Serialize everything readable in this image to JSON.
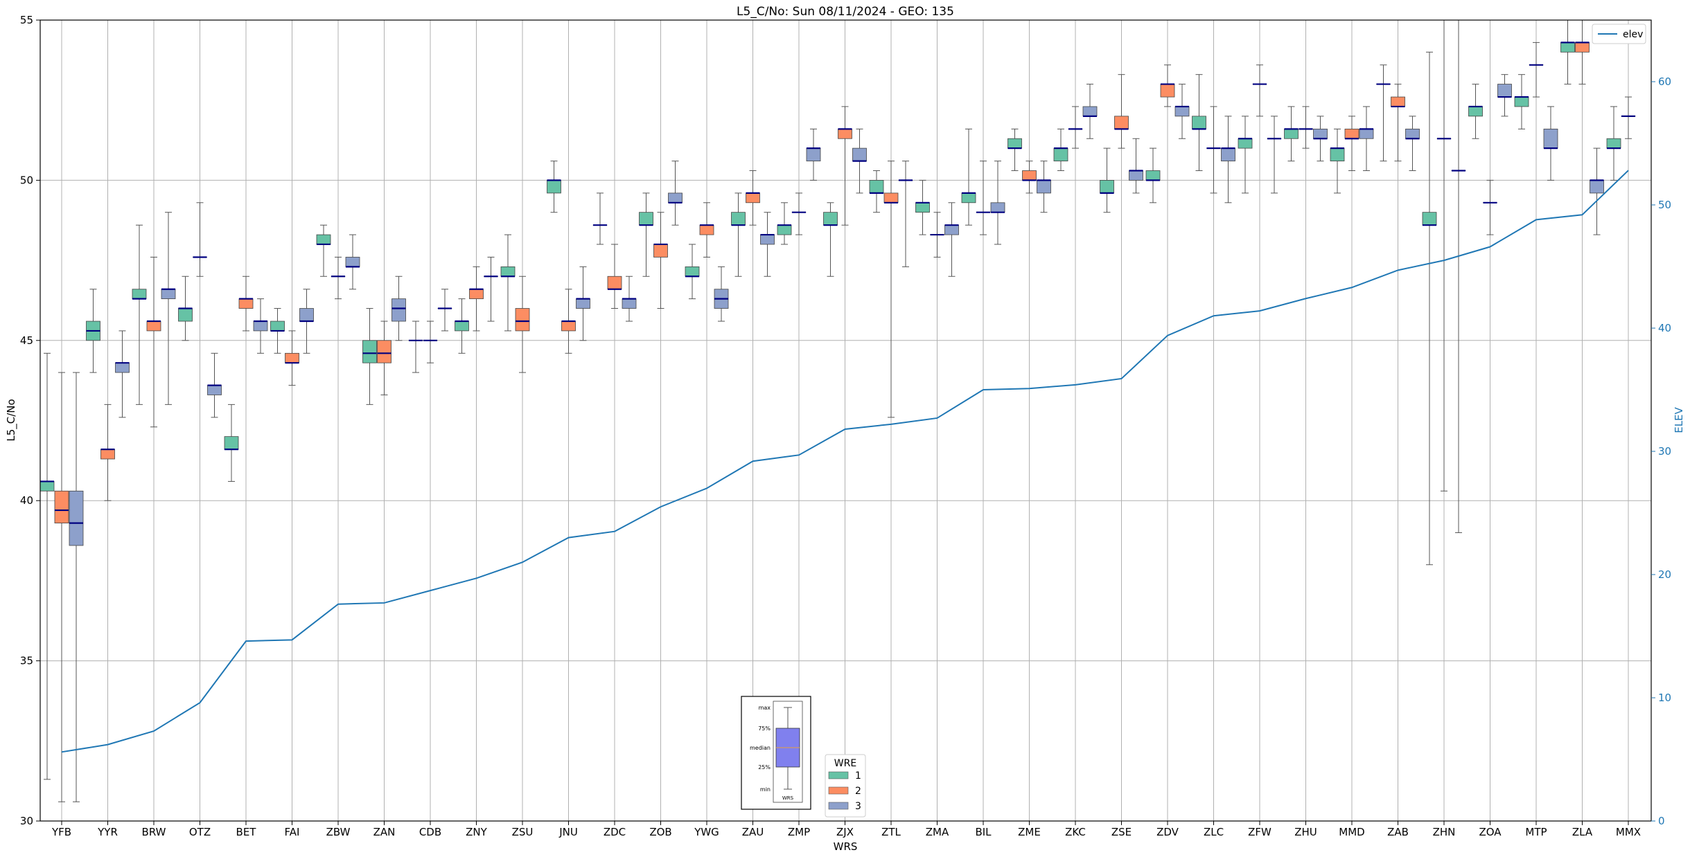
{
  "chart_data": {
    "type": "box",
    "title": "L5_C/No: Sun 08/11/2024 - GEO: 135",
    "xlabel": "WRS",
    "ylabel": "L5_C/No",
    "y2label": "ELEV",
    "ylim": [
      30,
      55
    ],
    "y2lim": [
      0,
      65
    ],
    "yticks": [
      "30",
      "35",
      "40",
      "45",
      "50",
      "55"
    ],
    "y2ticks": [
      "0",
      "10",
      "20",
      "30",
      "40",
      "50",
      "60"
    ],
    "grid": true,
    "categories": [
      "YFB",
      "YYR",
      "BRW",
      "OTZ",
      "BET",
      "FAI",
      "ZBW",
      "ZAN",
      "CDB",
      "ZNY",
      "ZSU",
      "JNU",
      "ZDC",
      "ZOB",
      "YWG",
      "ZAU",
      "ZMP",
      "ZJX",
      "ZTL",
      "ZMA",
      "BIL",
      "ZME",
      "ZKC",
      "ZSE",
      "ZDV",
      "ZLC",
      "ZFW",
      "ZHU",
      "MMD",
      "ZAB",
      "ZHN",
      "ZOA",
      "MTP",
      "ZLA",
      "MMX"
    ],
    "wre_legend": {
      "title": "WRE",
      "items": [
        {
          "label": "1",
          "color": "#66c2a5"
        },
        {
          "label": "2",
          "color": "#fc8d62"
        },
        {
          "label": "3",
          "color": "#8da0cb"
        }
      ]
    },
    "line_legend": {
      "label": "elev",
      "color": "#1f77b4"
    },
    "key_labels": [
      "max",
      "75%",
      "median",
      "25%",
      "min",
      "WRS"
    ],
    "boxes": [
      {
        "wrs": "YFB",
        "wre": 1,
        "min": 31.3,
        "q1": 40.3,
        "med": 40.6,
        "q3": 40.6,
        "max": 44.6
      },
      {
        "wrs": "YFB",
        "wre": 2,
        "min": 30.6,
        "q1": 39.3,
        "med": 39.7,
        "q3": 40.3,
        "max": 44.0
      },
      {
        "wrs": "YFB",
        "wre": 3,
        "min": 30.6,
        "q1": 38.6,
        "med": 39.3,
        "q3": 40.3,
        "max": 44.0
      },
      {
        "wrs": "YYR",
        "wre": 1,
        "min": 44.0,
        "q1": 45.0,
        "med": 45.3,
        "q3": 45.6,
        "max": 46.6
      },
      {
        "wrs": "YYR",
        "wre": 2,
        "min": 40.0,
        "q1": 41.3,
        "med": 41.6,
        "q3": 41.6,
        "max": 43.0
      },
      {
        "wrs": "YYR",
        "wre": 3,
        "min": 42.6,
        "q1": 44.0,
        "med": 44.3,
        "q3": 44.3,
        "max": 45.3
      },
      {
        "wrs": "BRW",
        "wre": 1,
        "min": 43.0,
        "q1": 46.3,
        "med": 46.3,
        "q3": 46.6,
        "max": 48.6
      },
      {
        "wrs": "BRW",
        "wre": 2,
        "min": 42.3,
        "q1": 45.3,
        "med": 45.6,
        "q3": 45.6,
        "max": 47.6
      },
      {
        "wrs": "BRW",
        "wre": 3,
        "min": 43.0,
        "q1": 46.3,
        "med": 46.6,
        "q3": 46.6,
        "max": 49.0
      },
      {
        "wrs": "OTZ",
        "wre": 1,
        "min": 45.0,
        "q1": 45.6,
        "med": 46.0,
        "q3": 46.0,
        "max": 47.0
      },
      {
        "wrs": "OTZ",
        "wre": 2,
        "min": 47.0,
        "q1": 47.6,
        "med": 47.6,
        "q3": 47.6,
        "max": 49.3
      },
      {
        "wrs": "OTZ",
        "wre": 3,
        "min": 42.6,
        "q1": 43.3,
        "med": 43.6,
        "q3": 43.6,
        "max": 44.6
      },
      {
        "wrs": "BET",
        "wre": 1,
        "min": 40.6,
        "q1": 41.6,
        "med": 41.6,
        "q3": 42.0,
        "max": 43.0
      },
      {
        "wrs": "BET",
        "wre": 2,
        "min": 45.3,
        "q1": 46.0,
        "med": 46.3,
        "q3": 46.3,
        "max": 47.0
      },
      {
        "wrs": "BET",
        "wre": 3,
        "min": 44.6,
        "q1": 45.3,
        "med": 45.6,
        "q3": 45.6,
        "max": 46.3
      },
      {
        "wrs": "FAI",
        "wre": 1,
        "min": 44.6,
        "q1": 45.3,
        "med": 45.3,
        "q3": 45.6,
        "max": 46.0
      },
      {
        "wrs": "FAI",
        "wre": 2,
        "min": 43.6,
        "q1": 44.3,
        "med": 44.3,
        "q3": 44.6,
        "max": 45.3
      },
      {
        "wrs": "FAI",
        "wre": 3,
        "min": 44.6,
        "q1": 45.6,
        "med": 45.6,
        "q3": 46.0,
        "max": 46.6
      },
      {
        "wrs": "ZBW",
        "wre": 1,
        "min": 47.0,
        "q1": 48.0,
        "med": 48.0,
        "q3": 48.3,
        "max": 48.6
      },
      {
        "wrs": "ZBW",
        "wre": 2,
        "min": 46.3,
        "q1": 47.0,
        "med": 47.0,
        "q3": 47.0,
        "max": 47.6
      },
      {
        "wrs": "ZBW",
        "wre": 3,
        "min": 46.6,
        "q1": 47.3,
        "med": 47.3,
        "q3": 47.6,
        "max": 48.3
      },
      {
        "wrs": "ZAN",
        "wre": 1,
        "min": 43.0,
        "q1": 44.3,
        "med": 44.6,
        "q3": 45.0,
        "max": 46.0
      },
      {
        "wrs": "ZAN",
        "wre": 2,
        "min": 43.3,
        "q1": 44.3,
        "med": 44.6,
        "q3": 45.0,
        "max": 45.6
      },
      {
        "wrs": "ZAN",
        "wre": 3,
        "min": 45.0,
        "q1": 45.6,
        "med": 46.0,
        "q3": 46.3,
        "max": 47.0
      },
      {
        "wrs": "CDB",
        "wre": 1,
        "min": 44.0,
        "q1": 45.0,
        "med": 45.0,
        "q3": 45.0,
        "max": 45.6
      },
      {
        "wrs": "CDB",
        "wre": 2,
        "min": 44.3,
        "q1": 45.0,
        "med": 45.0,
        "q3": 45.0,
        "max": 45.6
      },
      {
        "wrs": "CDB",
        "wre": 3,
        "min": 45.3,
        "q1": 46.0,
        "med": 46.0,
        "q3": 46.0,
        "max": 46.6
      },
      {
        "wrs": "ZNY",
        "wre": 1,
        "min": 44.6,
        "q1": 45.3,
        "med": 45.6,
        "q3": 45.6,
        "max": 46.3
      },
      {
        "wrs": "ZNY",
        "wre": 2,
        "min": 45.3,
        "q1": 46.3,
        "med": 46.6,
        "q3": 46.6,
        "max": 47.3
      },
      {
        "wrs": "ZNY",
        "wre": 3,
        "min": 45.6,
        "q1": 47.0,
        "med": 47.0,
        "q3": 47.0,
        "max": 47.6
      },
      {
        "wrs": "ZSU",
        "wre": 1,
        "min": 45.3,
        "q1": 47.0,
        "med": 47.0,
        "q3": 47.3,
        "max": 48.3
      },
      {
        "wrs": "ZSU",
        "wre": 2,
        "min": 44.0,
        "q1": 45.3,
        "med": 45.6,
        "q3": 46.0,
        "max": 47.0
      },
      {
        "wrs": "JNU",
        "wre": 1,
        "min": 49.0,
        "q1": 49.6,
        "med": 50.0,
        "q3": 50.0,
        "max": 50.6
      },
      {
        "wrs": "JNU",
        "wre": 2,
        "min": 44.6,
        "q1": 45.3,
        "med": 45.6,
        "q3": 45.6,
        "max": 46.6
      },
      {
        "wrs": "JNU",
        "wre": 3,
        "min": 45.0,
        "q1": 46.0,
        "med": 46.3,
        "q3": 46.3,
        "max": 47.3
      },
      {
        "wrs": "ZDC",
        "wre": 1,
        "min": 48.0,
        "q1": 48.6,
        "med": 48.6,
        "q3": 48.6,
        "max": 49.6
      },
      {
        "wrs": "ZDC",
        "wre": 2,
        "min": 46.0,
        "q1": 46.6,
        "med": 46.6,
        "q3": 47.0,
        "max": 48.0
      },
      {
        "wrs": "ZDC",
        "wre": 3,
        "min": 45.6,
        "q1": 46.0,
        "med": 46.3,
        "q3": 46.3,
        "max": 47.0
      },
      {
        "wrs": "ZOB",
        "wre": 1,
        "min": 47.0,
        "q1": 48.6,
        "med": 48.6,
        "q3": 49.0,
        "max": 49.6
      },
      {
        "wrs": "ZOB",
        "wre": 2,
        "min": 46.0,
        "q1": 47.6,
        "med": 48.0,
        "q3": 48.0,
        "max": 49.0
      },
      {
        "wrs": "ZOB",
        "wre": 3,
        "min": 48.6,
        "q1": 49.3,
        "med": 49.3,
        "q3": 49.6,
        "max": 50.6
      },
      {
        "wrs": "YWG",
        "wre": 1,
        "min": 46.3,
        "q1": 47.0,
        "med": 47.0,
        "q3": 47.3,
        "max": 48.0
      },
      {
        "wrs": "YWG",
        "wre": 2,
        "min": 47.6,
        "q1": 48.3,
        "med": 48.6,
        "q3": 48.6,
        "max": 49.3
      },
      {
        "wrs": "YWG",
        "wre": 3,
        "min": 45.6,
        "q1": 46.0,
        "med": 46.3,
        "q3": 46.6,
        "max": 47.3
      },
      {
        "wrs": "ZAU",
        "wre": 1,
        "min": 47.0,
        "q1": 48.6,
        "med": 48.6,
        "q3": 49.0,
        "max": 49.6
      },
      {
        "wrs": "ZAU",
        "wre": 2,
        "min": 48.6,
        "q1": 49.3,
        "med": 49.6,
        "q3": 49.6,
        "max": 50.3
      },
      {
        "wrs": "ZAU",
        "wre": 3,
        "min": 47.0,
        "q1": 48.0,
        "med": 48.3,
        "q3": 48.3,
        "max": 49.0
      },
      {
        "wrs": "ZMP",
        "wre": 1,
        "min": 48.0,
        "q1": 48.3,
        "med": 48.6,
        "q3": 48.6,
        "max": 49.3
      },
      {
        "wrs": "ZMP",
        "wre": 2,
        "min": 48.3,
        "q1": 49.0,
        "med": 49.0,
        "q3": 49.0,
        "max": 49.6
      },
      {
        "wrs": "ZMP",
        "wre": 3,
        "min": 50.0,
        "q1": 50.6,
        "med": 51.0,
        "q3": 51.0,
        "max": 51.6
      },
      {
        "wrs": "ZJX",
        "wre": 1,
        "min": 47.0,
        "q1": 48.6,
        "med": 48.6,
        "q3": 49.0,
        "max": 49.3
      },
      {
        "wrs": "ZJX",
        "wre": 2,
        "min": 48.6,
        "q1": 51.3,
        "med": 51.6,
        "q3": 51.6,
        "max": 52.3
      },
      {
        "wrs": "ZJX",
        "wre": 3,
        "min": 49.6,
        "q1": 50.6,
        "med": 50.6,
        "q3": 51.0,
        "max": 51.6
      },
      {
        "wrs": "ZTL",
        "wre": 1,
        "min": 49.0,
        "q1": 49.6,
        "med": 49.6,
        "q3": 50.0,
        "max": 50.3
      },
      {
        "wrs": "ZTL",
        "wre": 2,
        "min": 42.6,
        "q1": 49.3,
        "med": 49.3,
        "q3": 49.6,
        "max": 50.6
      },
      {
        "wrs": "ZTL",
        "wre": 3,
        "min": 47.3,
        "q1": 50.0,
        "med": 50.0,
        "q3": 50.0,
        "max": 50.6
      },
      {
        "wrs": "ZMA",
        "wre": 1,
        "min": 48.3,
        "q1": 49.0,
        "med": 49.3,
        "q3": 49.3,
        "max": 50.0
      },
      {
        "wrs": "ZMA",
        "wre": 2,
        "min": 47.6,
        "q1": 48.3,
        "med": 48.3,
        "q3": 48.3,
        "max": 49.0
      },
      {
        "wrs": "ZMA",
        "wre": 3,
        "min": 47.0,
        "q1": 48.3,
        "med": 48.6,
        "q3": 48.6,
        "max": 49.3
      },
      {
        "wrs": "BIL",
        "wre": 1,
        "min": 48.6,
        "q1": 49.3,
        "med": 49.6,
        "q3": 49.6,
        "max": 51.6
      },
      {
        "wrs": "BIL",
        "wre": 2,
        "min": 48.3,
        "q1": 49.0,
        "med": 49.0,
        "q3": 49.0,
        "max": 50.6
      },
      {
        "wrs": "BIL",
        "wre": 3,
        "min": 48.0,
        "q1": 49.0,
        "med": 49.0,
        "q3": 49.3,
        "max": 50.6
      },
      {
        "wrs": "ZME",
        "wre": 1,
        "min": 50.3,
        "q1": 51.0,
        "med": 51.0,
        "q3": 51.3,
        "max": 51.6
      },
      {
        "wrs": "ZME",
        "wre": 2,
        "min": 49.6,
        "q1": 50.0,
        "med": 50.0,
        "q3": 50.3,
        "max": 50.6
      },
      {
        "wrs": "ZME",
        "wre": 3,
        "min": 49.0,
        "q1": 49.6,
        "med": 50.0,
        "q3": 50.0,
        "max": 50.6
      },
      {
        "wrs": "ZKC",
        "wre": 1,
        "min": 50.3,
        "q1": 50.6,
        "med": 51.0,
        "q3": 51.0,
        "max": 51.6
      },
      {
        "wrs": "ZKC",
        "wre": 2,
        "min": 51.0,
        "q1": 51.6,
        "med": 51.6,
        "q3": 51.6,
        "max": 52.3
      },
      {
        "wrs": "ZKC",
        "wre": 3,
        "min": 51.3,
        "q1": 52.0,
        "med": 52.0,
        "q3": 52.3,
        "max": 53.0
      },
      {
        "wrs": "ZSE",
        "wre": 1,
        "min": 49.0,
        "q1": 49.6,
        "med": 49.6,
        "q3": 50.0,
        "max": 51.0
      },
      {
        "wrs": "ZSE",
        "wre": 2,
        "min": 51.0,
        "q1": 51.6,
        "med": 51.6,
        "q3": 52.0,
        "max": 53.3
      },
      {
        "wrs": "ZSE",
        "wre": 3,
        "min": 49.6,
        "q1": 50.0,
        "med": 50.3,
        "q3": 50.3,
        "max": 51.3
      },
      {
        "wrs": "ZDV",
        "wre": 1,
        "min": 49.3,
        "q1": 50.0,
        "med": 50.0,
        "q3": 50.3,
        "max": 51.0
      },
      {
        "wrs": "ZDV",
        "wre": 2,
        "min": 52.3,
        "q1": 52.6,
        "med": 53.0,
        "q3": 53.0,
        "max": 53.6
      },
      {
        "wrs": "ZDV",
        "wre": 3,
        "min": 51.3,
        "q1": 52.0,
        "med": 52.3,
        "q3": 52.3,
        "max": 53.0
      },
      {
        "wrs": "ZLC",
        "wre": 1,
        "min": 50.3,
        "q1": 51.6,
        "med": 51.6,
        "q3": 52.0,
        "max": 53.3
      },
      {
        "wrs": "ZLC",
        "wre": 2,
        "min": 49.6,
        "q1": 51.0,
        "med": 51.0,
        "q3": 51.0,
        "max": 52.3
      },
      {
        "wrs": "ZLC",
        "wre": 3,
        "min": 49.3,
        "q1": 50.6,
        "med": 51.0,
        "q3": 51.0,
        "max": 52.0
      },
      {
        "wrs": "ZFW",
        "wre": 1,
        "min": 49.6,
        "q1": 51.0,
        "med": 51.3,
        "q3": 51.3,
        "max": 52.0
      },
      {
        "wrs": "ZFW",
        "wre": 2,
        "min": 52.0,
        "q1": 53.0,
        "med": 53.0,
        "q3": 53.0,
        "max": 53.6
      },
      {
        "wrs": "ZFW",
        "wre": 3,
        "min": 49.6,
        "q1": 51.3,
        "med": 51.3,
        "q3": 51.3,
        "max": 52.0
      },
      {
        "wrs": "ZHU",
        "wre": 1,
        "min": 50.6,
        "q1": 51.3,
        "med": 51.6,
        "q3": 51.6,
        "max": 52.3
      },
      {
        "wrs": "ZHU",
        "wre": 2,
        "min": 51.0,
        "q1": 51.6,
        "med": 51.6,
        "q3": 51.6,
        "max": 52.3
      },
      {
        "wrs": "ZHU",
        "wre": 3,
        "min": 50.6,
        "q1": 51.3,
        "med": 51.3,
        "q3": 51.6,
        "max": 52.0
      },
      {
        "wrs": "MMD",
        "wre": 1,
        "min": 49.6,
        "q1": 50.6,
        "med": 51.0,
        "q3": 51.0,
        "max": 51.6
      },
      {
        "wrs": "MMD",
        "wre": 2,
        "min": 50.3,
        "q1": 51.3,
        "med": 51.3,
        "q3": 51.6,
        "max": 52.0
      },
      {
        "wrs": "MMD",
        "wre": 3,
        "min": 50.3,
        "q1": 51.3,
        "med": 51.6,
        "q3": 51.6,
        "max": 52.3
      },
      {
        "wrs": "ZAB",
        "wre": 1,
        "min": 50.6,
        "q1": 53.0,
        "med": 53.0,
        "q3": 53.0,
        "max": 53.6
      },
      {
        "wrs": "ZAB",
        "wre": 2,
        "min": 50.6,
        "q1": 52.3,
        "med": 52.3,
        "q3": 52.6,
        "max": 53.0
      },
      {
        "wrs": "ZAB",
        "wre": 3,
        "min": 50.3,
        "q1": 51.3,
        "med": 51.3,
        "q3": 51.6,
        "max": 52.0
      },
      {
        "wrs": "ZHN",
        "wre": 1,
        "min": 38.0,
        "q1": 48.6,
        "med": 48.6,
        "q3": 49.0,
        "max": 54.0
      },
      {
        "wrs": "ZHN",
        "wre": 2,
        "min": 40.3,
        "q1": 51.3,
        "med": 51.3,
        "q3": 51.3,
        "max": 55.0
      },
      {
        "wrs": "ZHN",
        "wre": 3,
        "min": 39.0,
        "q1": 50.3,
        "med": 50.3,
        "q3": 50.3,
        "max": 55.0
      },
      {
        "wrs": "ZOA",
        "wre": 1,
        "min": 51.3,
        "q1": 52.0,
        "med": 52.3,
        "q3": 52.3,
        "max": 53.0
      },
      {
        "wrs": "ZOA",
        "wre": 2,
        "min": 48.3,
        "q1": 49.3,
        "med": 49.3,
        "q3": 49.3,
        "max": 50.0
      },
      {
        "wrs": "ZOA",
        "wre": 3,
        "min": 52.0,
        "q1": 52.6,
        "med": 52.6,
        "q3": 53.0,
        "max": 53.3
      },
      {
        "wrs": "MTP",
        "wre": 1,
        "min": 51.6,
        "q1": 52.3,
        "med": 52.6,
        "q3": 52.6,
        "max": 53.3
      },
      {
        "wrs": "MTP",
        "wre": 2,
        "min": 52.6,
        "q1": 53.6,
        "med": 53.6,
        "q3": 53.6,
        "max": 54.3
      },
      {
        "wrs": "MTP",
        "wre": 3,
        "min": 50.0,
        "q1": 51.0,
        "med": 51.0,
        "q3": 51.6,
        "max": 52.3
      },
      {
        "wrs": "ZLA",
        "wre": 1,
        "min": 53.0,
        "q1": 54.0,
        "med": 54.3,
        "q3": 54.3,
        "max": 55.0
      },
      {
        "wrs": "ZLA",
        "wre": 2,
        "min": 53.0,
        "q1": 54.0,
        "med": 54.3,
        "q3": 54.3,
        "max": 55.0
      },
      {
        "wrs": "ZLA",
        "wre": 3,
        "min": 48.3,
        "q1": 49.6,
        "med": 50.0,
        "q3": 50.0,
        "max": 51.0
      },
      {
        "wrs": "MMX",
        "wre": 1,
        "min": 50.0,
        "q1": 51.0,
        "med": 51.0,
        "q3": 51.3,
        "max": 52.3
      },
      {
        "wrs": "MMX",
        "wre": 2,
        "min": 51.3,
        "q1": 52.0,
        "med": 52.0,
        "q3": 52.0,
        "max": 52.6
      }
    ],
    "elev": {
      "name": "elev",
      "x": [
        "YFB",
        "YYR",
        "BRW",
        "OTZ",
        "BET",
        "FAI",
        "ZBW",
        "ZAN",
        "CDB",
        "ZNY",
        "ZSU",
        "JNU",
        "ZDC",
        "ZOB",
        "YWG",
        "ZAU",
        "ZMP",
        "ZJX",
        "ZTL",
        "ZMA",
        "BIL",
        "ZME",
        "ZKC",
        "ZSE",
        "ZDV",
        "ZLC",
        "ZFW",
        "ZHU",
        "MMD",
        "ZAB",
        "ZHN",
        "ZOA",
        "MTP",
        "ZLA",
        "MMX"
      ],
      "values": [
        5.6,
        6.2,
        7.3,
        9.6,
        14.6,
        14.7,
        17.6,
        17.7,
        18.7,
        19.7,
        21.0,
        23.0,
        23.5,
        25.5,
        27.0,
        29.2,
        29.7,
        31.8,
        32.2,
        32.7,
        35.0,
        35.1,
        35.4,
        35.9,
        39.4,
        41.0,
        41.4,
        42.4,
        43.3,
        44.7,
        45.5,
        46.6,
        48.8,
        49.2,
        52.8
      ]
    }
  }
}
